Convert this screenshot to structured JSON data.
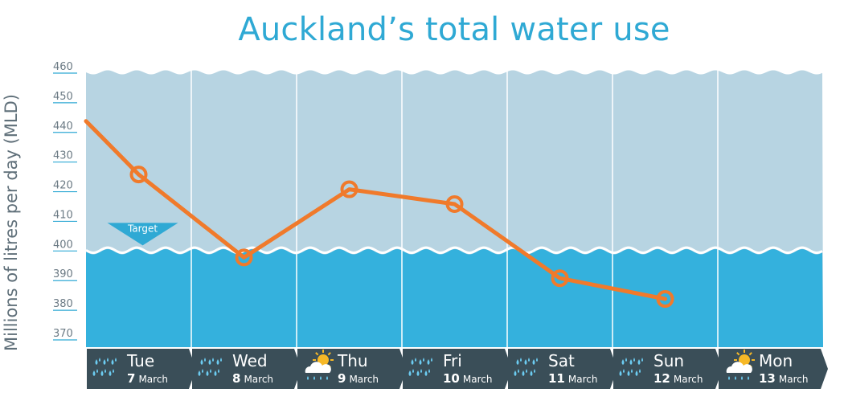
{
  "title": "Auckland’s total water use",
  "chart_data": {
    "type": "line",
    "title": "Auckland’s total water use",
    "ylabel": "Millions of litres per day (MLD)",
    "ylim": [
      370,
      460
    ],
    "yticks": [
      370,
      380,
      390,
      400,
      410,
      420,
      430,
      440,
      450,
      460
    ],
    "target": {
      "label": "Target",
      "value": 400
    },
    "categories": [
      {
        "day": "Tue",
        "date": "7",
        "month": "March",
        "weather": "rain"
      },
      {
        "day": "Wed",
        "date": "8",
        "month": "March",
        "weather": "rain"
      },
      {
        "day": "Thu",
        "date": "9",
        "month": "March",
        "weather": "sun-cloud-rain"
      },
      {
        "day": "Fri",
        "date": "10",
        "month": "March",
        "weather": "rain"
      },
      {
        "day": "Sat",
        "date": "11",
        "month": "March",
        "weather": "rain"
      },
      {
        "day": "Sun",
        "date": "12",
        "month": "March",
        "weather": "rain"
      },
      {
        "day": "Mon",
        "date": "13",
        "month": "March",
        "weather": "sun-cloud-rain"
      }
    ],
    "series": [
      {
        "values": [
          425,
          397,
          420,
          415,
          390,
          383,
          null
        ],
        "start_value": 443
      }
    ],
    "grid": true,
    "colors": {
      "line": "#f07a2b",
      "above_target": "#b7d4e2",
      "below_target": "#34b1dd",
      "day_bar": "#3a4e58",
      "tick_line": "#2fa9d4"
    }
  }
}
